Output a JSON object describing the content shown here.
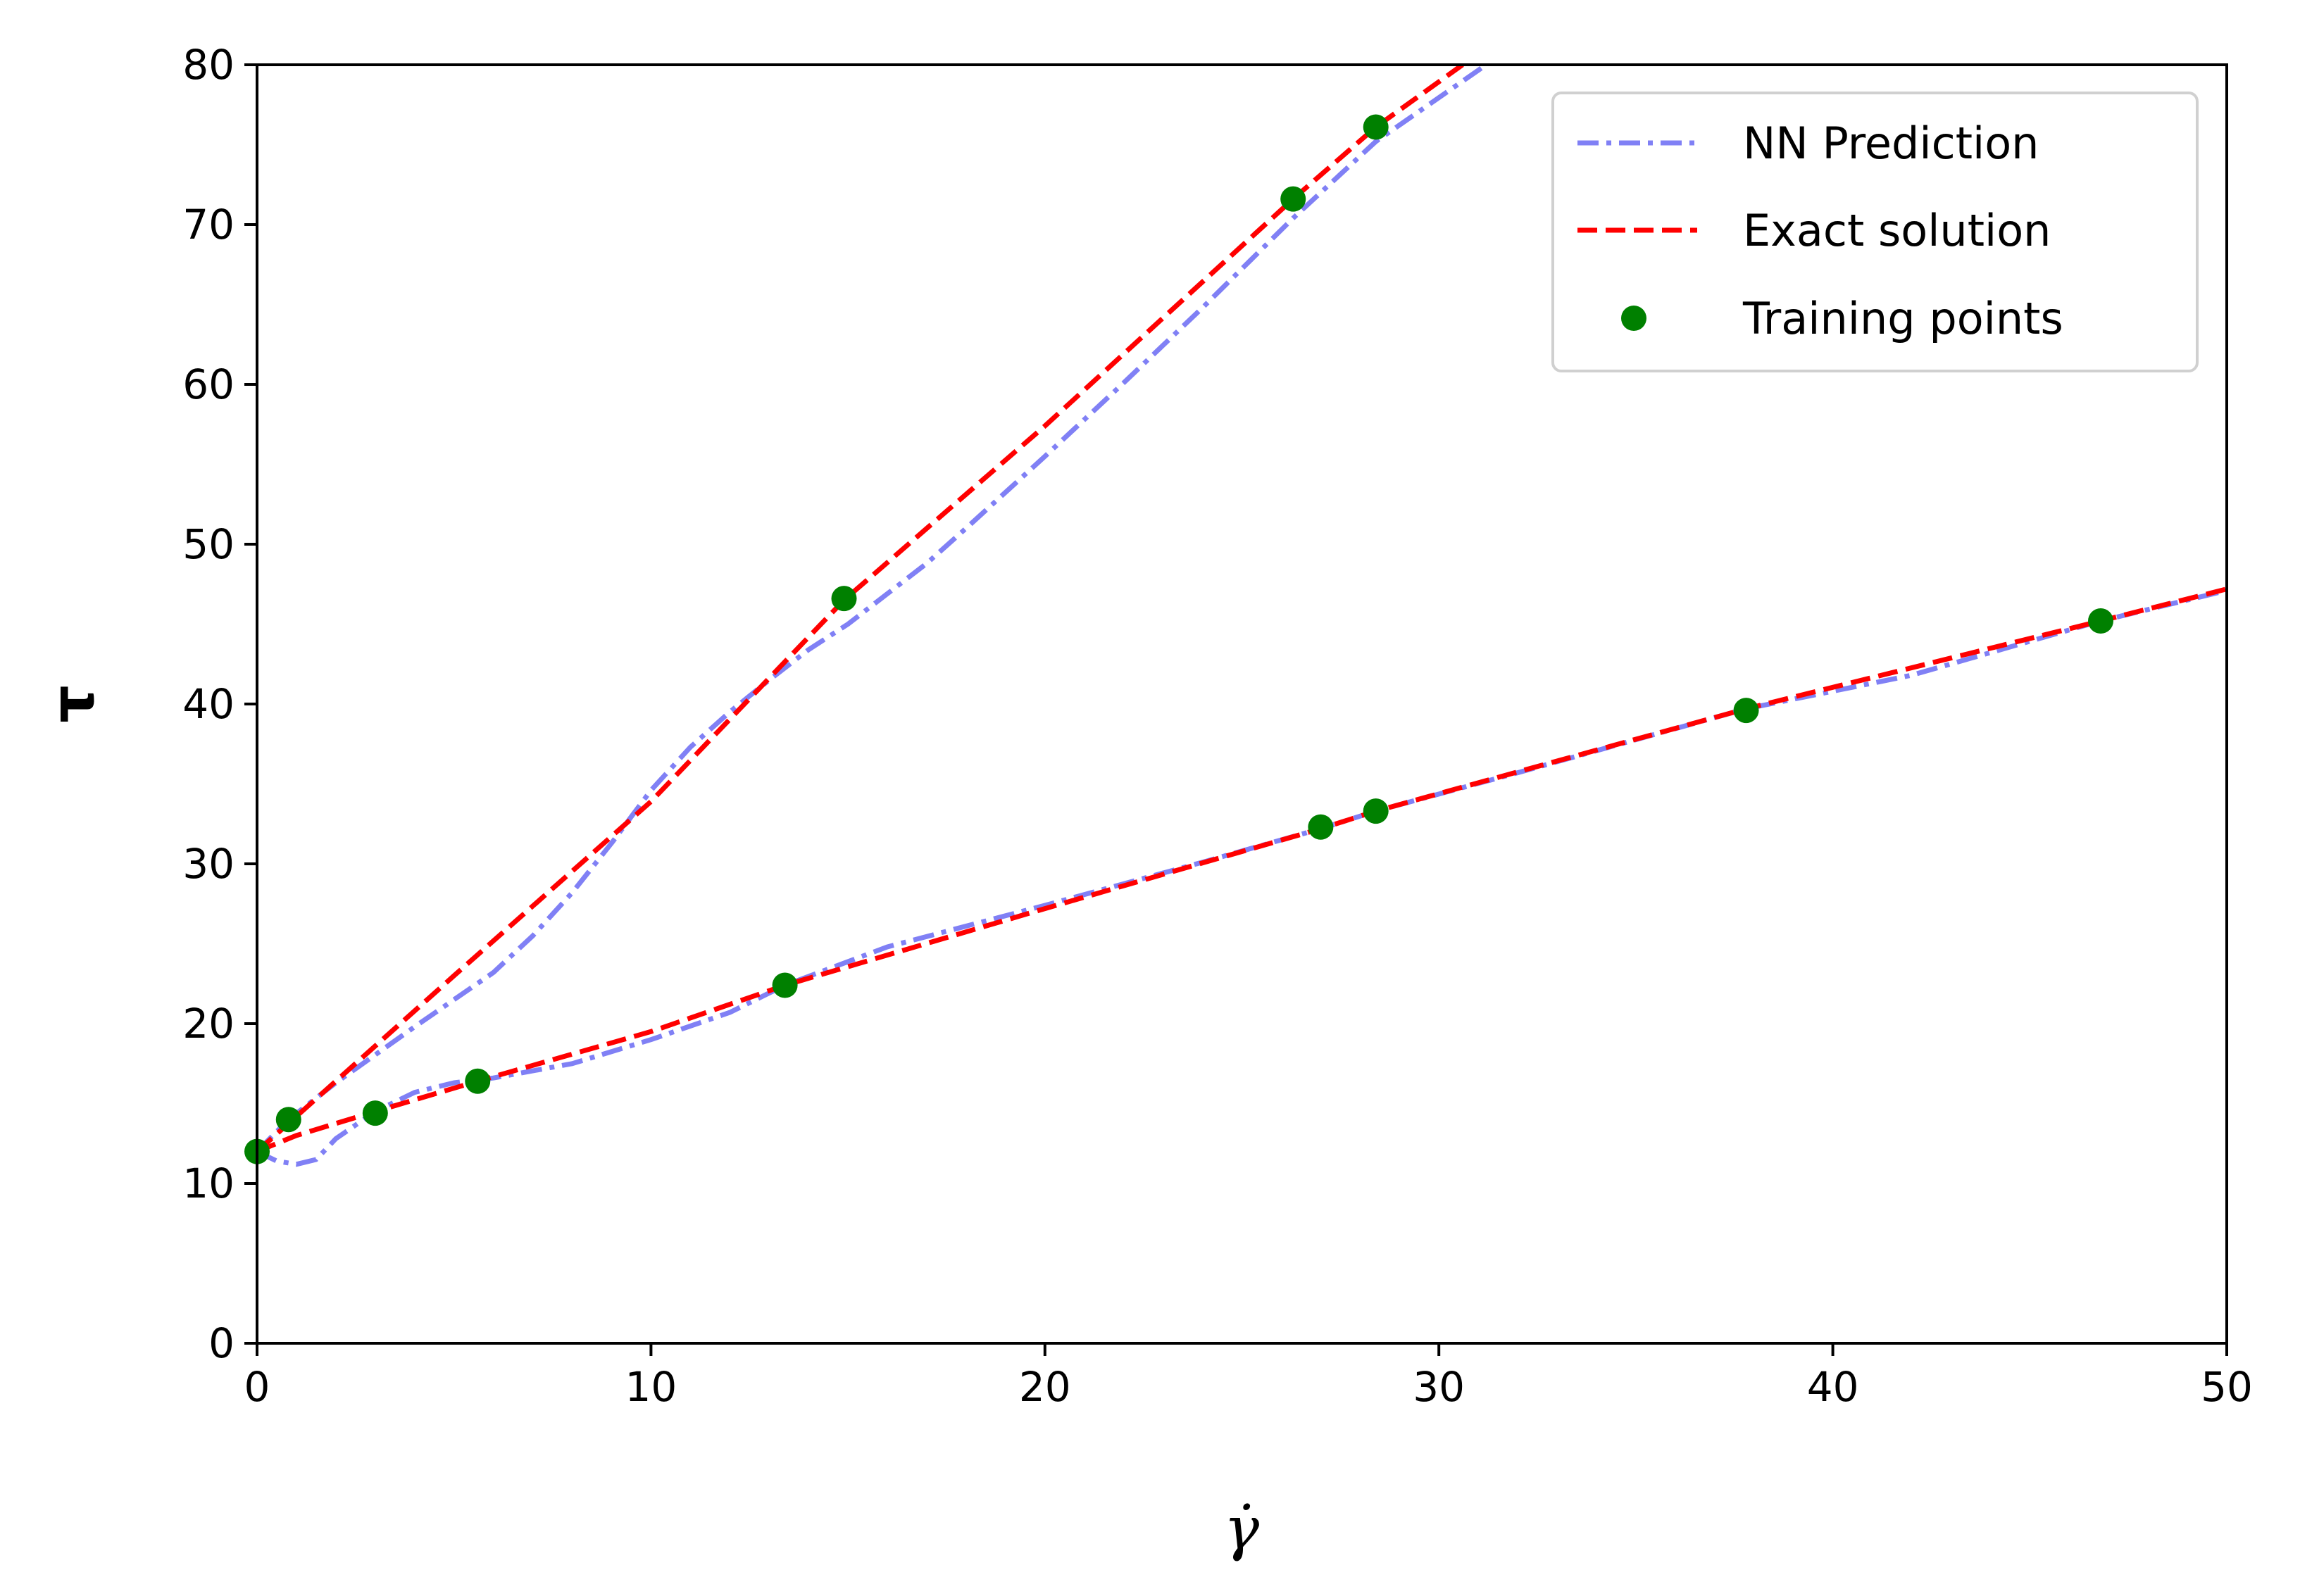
{
  "chart_data": {
    "type": "line",
    "title": "",
    "xlabel": "γ̇",
    "ylabel": "τ",
    "xlim": [
      0,
      50
    ],
    "ylim": [
      0,
      80
    ],
    "xticks": [
      0,
      10,
      20,
      30,
      40,
      50
    ],
    "yticks": [
      0,
      10,
      20,
      30,
      40,
      50,
      60,
      70,
      80
    ],
    "grid": false,
    "legend_position": "top-right",
    "colors": {
      "nn_prediction": "#8080f5",
      "exact_solution": "#ff0000",
      "training_points": "#008000"
    },
    "legend": [
      {
        "key": "nn",
        "label": "NN Prediction",
        "style": "dashdot",
        "color": "#8080f5"
      },
      {
        "key": "exact",
        "label": "Exact solution",
        "style": "dashed",
        "color": "#ff0000"
      },
      {
        "key": "train",
        "label": "Training points",
        "style": "marker",
        "color": "#008000"
      }
    ],
    "series": [
      {
        "name": "NN Prediction",
        "style": "dashdot",
        "color": "#8080f5",
        "curves": [
          [
            [
              0,
              12
            ],
            [
              0.5,
              11.4
            ],
            [
              1.0,
              11.2
            ],
            [
              1.5,
              11.5
            ],
            [
              2,
              12.8
            ],
            [
              3,
              14.5
            ],
            [
              4,
              15.7
            ],
            [
              5,
              16.3
            ],
            [
              6,
              16.6
            ],
            [
              8,
              17.5
            ],
            [
              10,
              19.0
            ],
            [
              12,
              20.7
            ],
            [
              13.4,
              22.4
            ],
            [
              16,
              24.8
            ],
            [
              20,
              27.4
            ],
            [
              24,
              30.1
            ],
            [
              27,
              32.2
            ],
            [
              28.4,
              33.3
            ],
            [
              32,
              35.7
            ],
            [
              37.8,
              39.7
            ],
            [
              42,
              41.8
            ],
            [
              46.8,
              45.2
            ],
            [
              50,
              47.1
            ]
          ],
          [
            [
              0,
              12
            ],
            [
              0.8,
              14.0
            ],
            [
              2,
              16.3
            ],
            [
              4,
              19.8
            ],
            [
              6,
              23.2
            ],
            [
              7,
              25.5
            ],
            [
              8,
              28.2
            ],
            [
              9,
              31.3
            ],
            [
              10,
              34.6
            ],
            [
              11,
              37.3
            ],
            [
              12,
              39.5
            ],
            [
              13,
              41.5
            ],
            [
              14,
              43.4
            ],
            [
              15,
              45.0
            ],
            [
              16,
              46.9
            ],
            [
              17,
              48.8
            ],
            [
              18,
              51.0
            ],
            [
              20,
              55.5
            ],
            [
              22,
              60.1
            ],
            [
              24,
              64.8
            ],
            [
              26.3,
              70.4
            ],
            [
              28.4,
              75.2
            ],
            [
              31.2,
              80
            ]
          ]
        ]
      },
      {
        "name": "Exact solution",
        "style": "dashed",
        "color": "#ff0000",
        "curves": [
          [
            [
              0,
              12
            ],
            [
              1,
              13.0
            ],
            [
              3,
              14.5
            ],
            [
              5.6,
              16.4
            ],
            [
              10,
              19.5
            ],
            [
              13.4,
              22.4
            ],
            [
              20,
              27.2
            ],
            [
              27,
              32.2
            ],
            [
              28.4,
              33.3
            ],
            [
              37.8,
              39.7
            ],
            [
              46.8,
              45.2
            ],
            [
              50,
              47.2
            ]
          ],
          [
            [
              0,
              12
            ],
            [
              1,
              14.2
            ],
            [
              5,
              23.0
            ],
            [
              10,
              33.9
            ],
            [
              14.9,
              46.5
            ],
            [
              20,
              57.4
            ],
            [
              26.3,
              71.6
            ],
            [
              28.4,
              76.1
            ],
            [
              30.6,
              80
            ]
          ]
        ]
      }
    ],
    "training_points": [
      [
        0,
        12
      ],
      [
        0.8,
        14.0
      ],
      [
        3.0,
        14.4
      ],
      [
        5.6,
        16.4
      ],
      [
        13.4,
        22.4
      ],
      [
        14.9,
        46.6
      ],
      [
        26.3,
        71.6
      ],
      [
        27.0,
        32.3
      ],
      [
        28.4,
        33.3
      ],
      [
        28.4,
        76.1
      ],
      [
        37.8,
        39.6
      ],
      [
        46.8,
        45.2
      ]
    ]
  }
}
